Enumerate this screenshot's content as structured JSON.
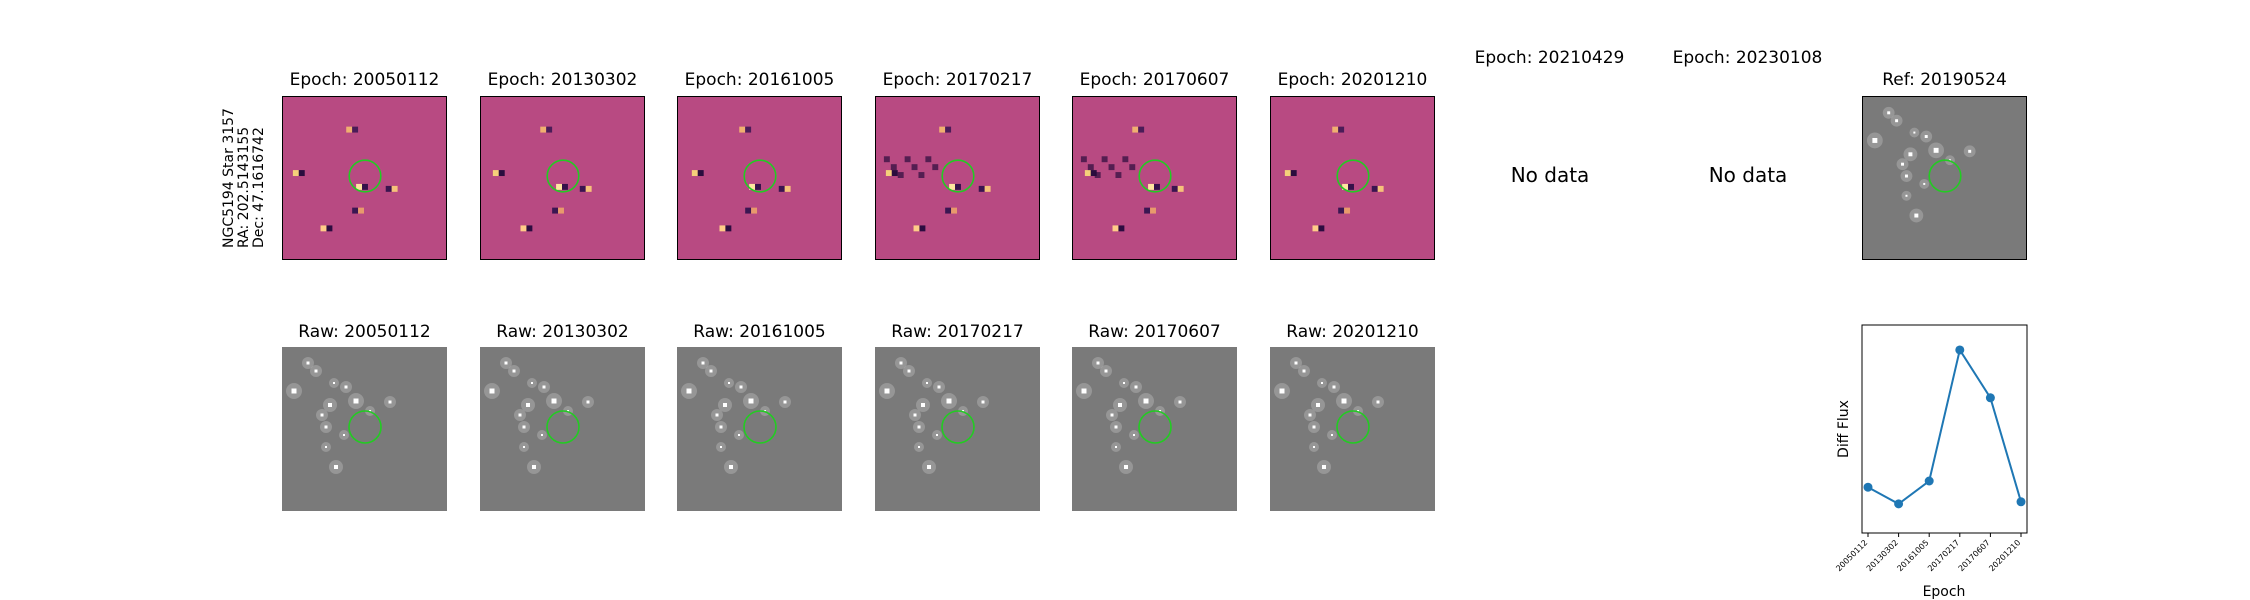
{
  "side_label": [
    "NGC5194 Star 3157",
    "RA: 202.5143155",
    "Dec: 47.1616742"
  ],
  "diff_panels": [
    {
      "title": "Epoch: 20050112",
      "has_data": true
    },
    {
      "title": "Epoch: 20130302",
      "has_data": true
    },
    {
      "title": "Epoch: 20161005",
      "has_data": true
    },
    {
      "title": "Epoch: 20170217",
      "has_data": true
    },
    {
      "title": "Epoch: 20170607",
      "has_data": true
    },
    {
      "title": "Epoch: 20201210",
      "has_data": true
    },
    {
      "title": "Epoch: 20210429",
      "has_data": false,
      "message": "No data"
    },
    {
      "title": "Epoch: 20230108",
      "has_data": false,
      "message": "No data"
    }
  ],
  "ref_panel": {
    "title": "Ref: 20190524"
  },
  "raw_panels": [
    {
      "title": "Raw: 20050112"
    },
    {
      "title": "Raw: 20130302"
    },
    {
      "title": "Raw: 20161005"
    },
    {
      "title": "Raw: 20170217"
    },
    {
      "title": "Raw: 20170607"
    },
    {
      "title": "Raw: 20201210"
    }
  ],
  "colors": {
    "diff_bg": "#b84a82",
    "raw_bg": "#7a7a7a",
    "aperture": "#22cc22",
    "line": "#1f77b4"
  },
  "chart_data": {
    "type": "line",
    "title": "",
    "xlabel": "Epoch",
    "ylabel": "Diff Flux",
    "categories": [
      "20050112",
      "20130302",
      "20161005",
      "20170217",
      "20170607",
      "20201210"
    ],
    "values": [
      0.12,
      0.04,
      0.15,
      0.78,
      0.55,
      0.05
    ],
    "ylim": [
      -0.1,
      0.9
    ],
    "y_ticks_shown": false,
    "grid": false,
    "marker": "circle"
  }
}
